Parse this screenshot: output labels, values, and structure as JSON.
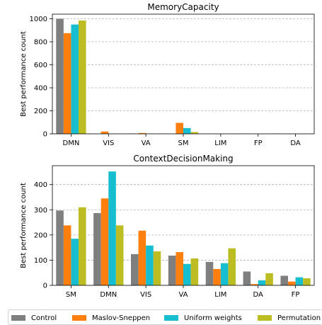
{
  "colors": {
    "Control": "#7f7f7f",
    "Maslov-Sneppen": "#ff7f0e",
    "Uniform weights": "#17becf",
    "Permutation": "#bcbd22"
  },
  "legend": [
    {
      "label": "Control",
      "color": "#7f7f7f"
    },
    {
      "label": "Maslov-Sneppen",
      "color": "#ff7f0e"
    },
    {
      "label": "Uniform weights",
      "color": "#17becf"
    },
    {
      "label": "Permutation",
      "color": "#bcbd22"
    }
  ],
  "chart_data": [
    {
      "type": "bar",
      "title": "MemoryCapacity",
      "ylabel": "Best performance count",
      "xlabel": "",
      "ylim": [
        0,
        1040
      ],
      "yticks": [
        0,
        200,
        400,
        600,
        800,
        1000
      ],
      "grid": "y-dashed",
      "categories": [
        "DMN",
        "VIS",
        "VA",
        "SM",
        "LIM",
        "FP",
        "DA"
      ],
      "series": [
        {
          "name": "Control",
          "values": [
            1000,
            0,
            0,
            0,
            0,
            0,
            0
          ]
        },
        {
          "name": "Maslov-Sneppen",
          "values": [
            875,
            20,
            7,
            95,
            0,
            0,
            0
          ]
        },
        {
          "name": "Uniform weights",
          "values": [
            950,
            0,
            0,
            50,
            0,
            0,
            0
          ]
        },
        {
          "name": "Permutation",
          "values": [
            985,
            0,
            0,
            15,
            0,
            0,
            0
          ]
        }
      ]
    },
    {
      "type": "bar",
      "title": "ContextDecisionMaking",
      "ylabel": "Best performance count",
      "xlabel": "",
      "ylim": [
        0,
        475
      ],
      "yticks": [
        0,
        100,
        200,
        300,
        400
      ],
      "grid": "y-dashed",
      "categories": [
        "SM",
        "DMN",
        "VIS",
        "VA",
        "LIM",
        "DA",
        "FP"
      ],
      "series": [
        {
          "name": "Control",
          "values": [
            297,
            287,
            124,
            118,
            93,
            55,
            38
          ]
        },
        {
          "name": "Maslov-Sneppen",
          "values": [
            238,
            345,
            217,
            132,
            65,
            5,
            15
          ]
        },
        {
          "name": "Uniform weights",
          "values": [
            185,
            452,
            158,
            85,
            88,
            20,
            32
          ]
        },
        {
          "name": "Permutation",
          "values": [
            310,
            238,
            135,
            107,
            147,
            48,
            28
          ]
        }
      ]
    }
  ]
}
